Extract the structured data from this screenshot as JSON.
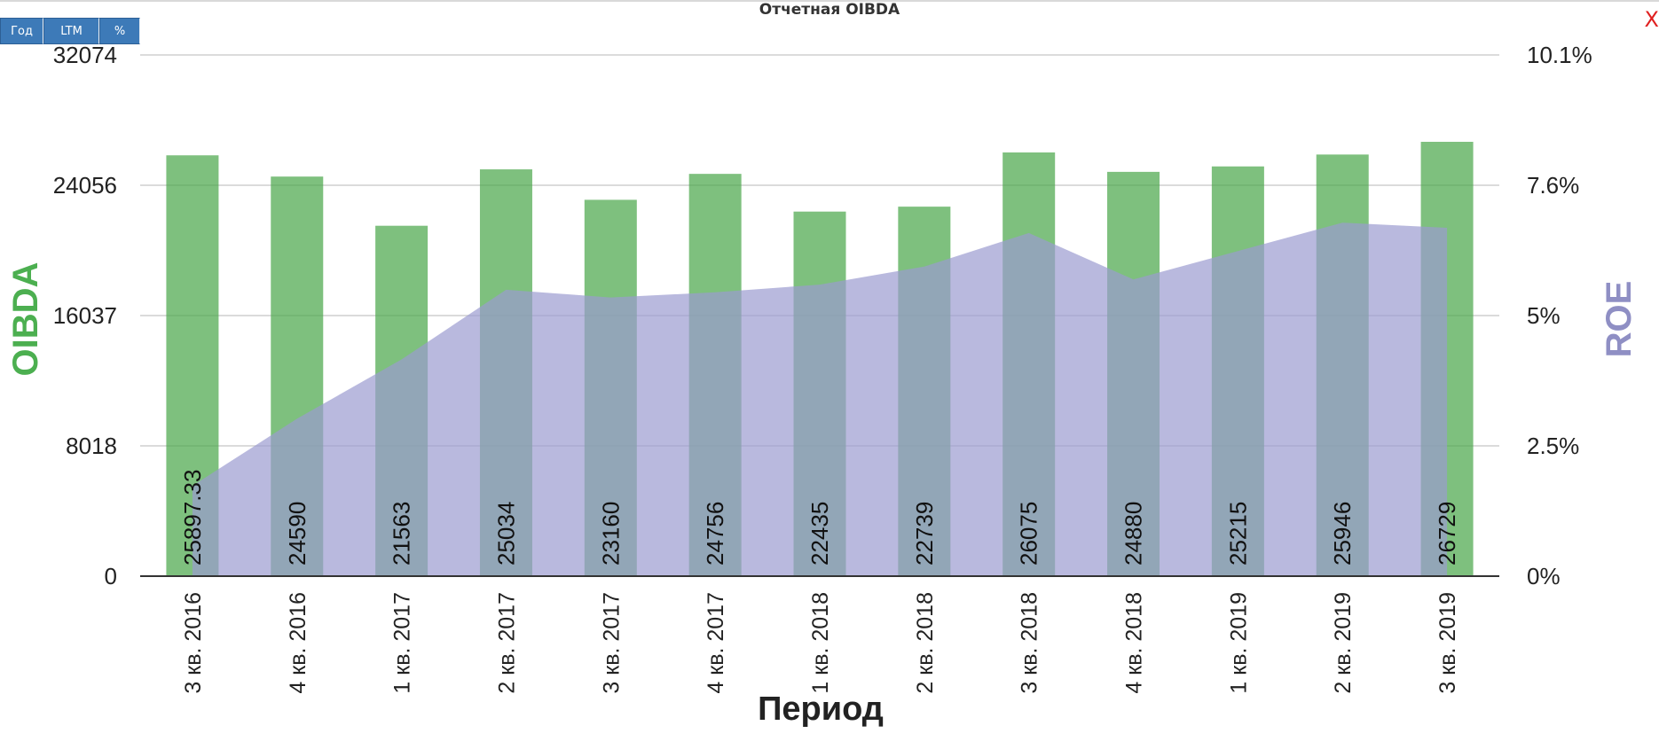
{
  "title": "Отчетная OIBDA",
  "buttons": [
    "Год",
    "LTM",
    "%"
  ],
  "close_label": "X",
  "colors": {
    "bar": "#4ca84c",
    "area": "#9b9bd0",
    "left_axis_label": "#4caf50",
    "right_axis_label": "#8f8fc4",
    "button": "#3d7ab8"
  },
  "chart_data": {
    "type": "bar",
    "title": "Отчетная OIBDA",
    "xlabel": "Период",
    "ylabel": "OIBDA",
    "y2label": "ROE",
    "ylim": [
      0,
      32074
    ],
    "y2lim": [
      0,
      10.1
    ],
    "yticks": [
      "32074",
      "24056",
      "16037",
      "8018",
      "0"
    ],
    "y2ticks": [
      "10.1%",
      "7.6%",
      "5%",
      "2.5%",
      "0%"
    ],
    "categories": [
      "3 кв. 2016",
      "4 кв. 2016",
      "1 кв. 2017",
      "2 кв. 2017",
      "3 кв. 2017",
      "4 кв. 2017",
      "1 кв. 2018",
      "2 кв. 2018",
      "3 кв. 2018",
      "4 кв. 2018",
      "1 кв. 2019",
      "2 кв. 2019",
      "3 кв. 2019"
    ],
    "series": [
      {
        "name": "OIBDA",
        "type": "bar",
        "values": [
          25897.33,
          24590,
          21563,
          25034,
          23160,
          24756,
          22435,
          22739,
          26075,
          24880,
          25215,
          25946,
          26729
        ],
        "labels": [
          "25897.33",
          "24590",
          "21563",
          "25034",
          "23160",
          "24756",
          "22435",
          "22739",
          "26075",
          "24880",
          "25215",
          "25946",
          "26729"
        ]
      },
      {
        "name": "ROE",
        "type": "area",
        "axis": "right",
        "values": [
          1.75,
          3.05,
          4.2,
          5.55,
          5.4,
          5.5,
          5.65,
          6.0,
          6.65,
          5.75,
          6.3,
          6.85,
          6.75
        ]
      }
    ],
    "grid": true
  }
}
